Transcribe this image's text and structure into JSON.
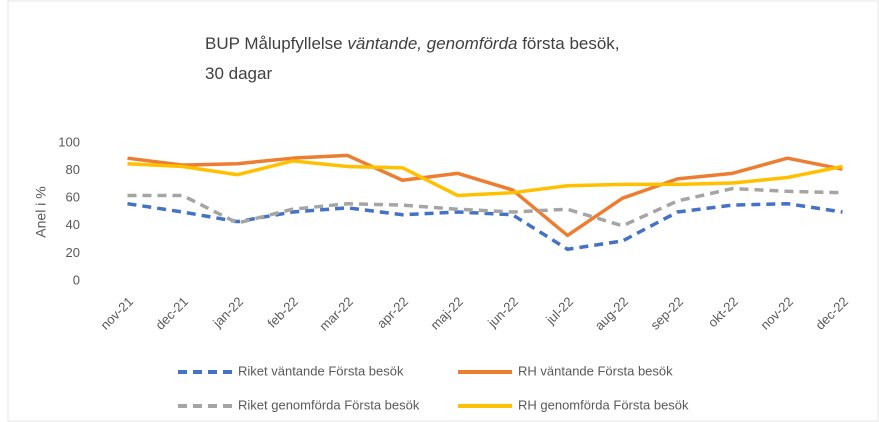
{
  "chart_data": {
    "type": "line",
    "title": [
      [
        {
          "text": "BUP Målupfyllelse ",
          "italic": false
        },
        {
          "text": "väntande, genomförda",
          "italic": true
        },
        {
          "text": " första besök,",
          "italic": false
        }
      ],
      [
        {
          "text": "30 dagar",
          "italic": false
        }
      ]
    ],
    "y_label": "Anel i %",
    "categories": [
      "nov-21",
      "dec-21",
      "jan-22",
      "feb-22",
      "mar-22",
      "apr-22",
      "maj-22",
      "jun-22",
      "jul-22",
      "aug-22",
      "sep-22",
      "okt-22",
      "nov-22",
      "dec-22"
    ],
    "series": [
      {
        "name": "Riket väntande Första besök",
        "color": "#4472c4",
        "dashed": true,
        "values": [
          56,
          50,
          43,
          50,
          53,
          48,
          50,
          48,
          23,
          29,
          50,
          55,
          56,
          50
        ]
      },
      {
        "name": "RH väntande Första besök",
        "color": "#ed7d31",
        "dashed": false,
        "values": [
          89,
          84,
          85,
          89,
          91,
          73,
          78,
          66,
          33,
          60,
          74,
          78,
          89,
          81
        ]
      },
      {
        "name": "Riket genomförda Första besök",
        "color": "#a5a5a5",
        "dashed": true,
        "values": [
          62,
          62,
          42,
          52,
          56,
          55,
          52,
          50,
          52,
          40,
          58,
          67,
          65,
          64
        ]
      },
      {
        "name": "RH genomförda Första besök",
        "color": "#ffc000",
        "dashed": false,
        "values": [
          85,
          83,
          77,
          87,
          83,
          82,
          62,
          64,
          69,
          70,
          70,
          71,
          75,
          83
        ]
      }
    ],
    "ylim": [
      0,
      100
    ],
    "yticks": [
      0,
      20,
      40,
      60,
      80,
      100
    ],
    "grid": false,
    "legend": "bottom"
  }
}
